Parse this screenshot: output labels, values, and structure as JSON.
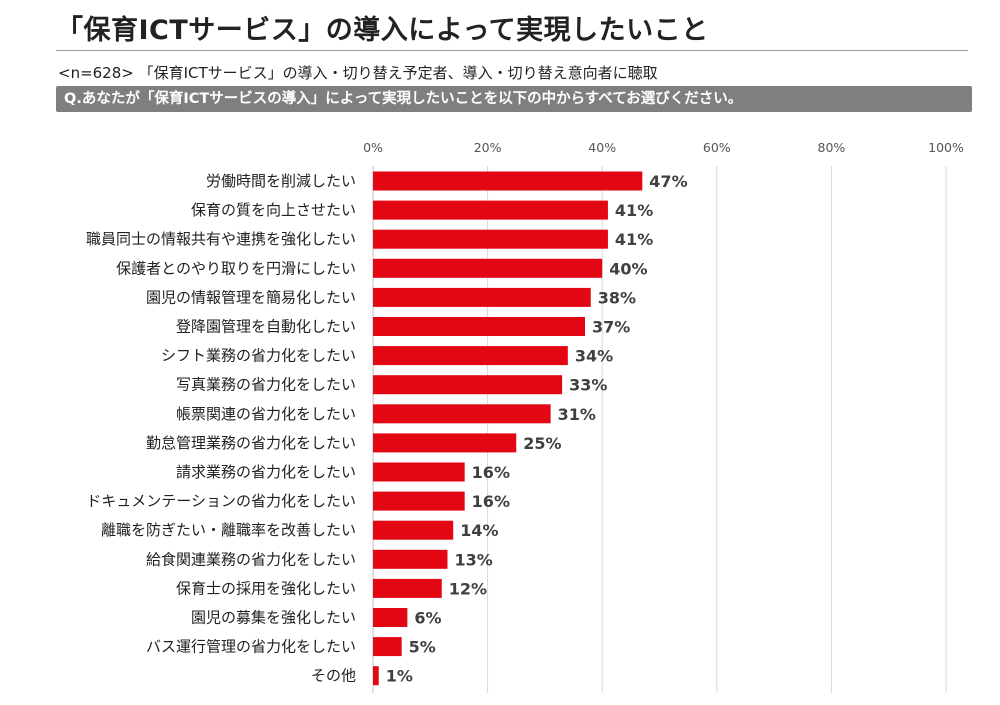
{
  "header": {
    "title": "「保育ICTサービス」の導入によって実現したいこと",
    "note": "<n=628>  「保育ICTサービス」の導入・切り替え予定者、導入・切り替え意向者に聴取",
    "question": "Q.あなたが「保育ICTサービスの導入」によって実現したいことを以下の中からすべてお選びください。"
  },
  "colors": {
    "bar": "#e30613",
    "question_bg": "#7f7f7f"
  },
  "chart_data": {
    "type": "bar",
    "orientation": "horizontal",
    "categories": [
      "労働時間を削減したい",
      "保育の質を向上させたい",
      "職員同士の情報共有や連携を強化したい",
      "保護者とのやり取りを円滑にしたい",
      "園児の情報管理を簡易化したい",
      "登降園管理を自動化したい",
      "シフト業務の省力化をしたい",
      "写真業務の省力化をしたい",
      "帳票関連の省力化をしたい",
      "勤怠管理業務の省力化をしたい",
      "請求業務の省力化をしたい",
      "ドキュメンテーションの省力化をしたい",
      "離職を防ぎたい・離職率を改善したい",
      "給食関連業務の省力化をしたい",
      "保育士の採用を強化したい",
      "園児の募集を強化したい",
      "バス運行管理の省力化をしたい",
      "その他"
    ],
    "values": [
      47,
      41,
      41,
      40,
      38,
      37,
      34,
      33,
      31,
      25,
      16,
      16,
      14,
      13,
      12,
      6,
      5,
      1
    ],
    "value_labels": [
      "47%",
      "41%",
      "41%",
      "40%",
      "38%",
      "37%",
      "34%",
      "33%",
      "31%",
      "25%",
      "16%",
      "16%",
      "14%",
      "13%",
      "12%",
      "6%",
      "5%",
      "1%"
    ],
    "xticks": [
      0,
      20,
      40,
      60,
      80,
      100
    ],
    "xtick_labels": [
      "0%",
      "20%",
      "40%",
      "60%",
      "80%",
      "100%"
    ],
    "xlim": [
      0,
      100
    ],
    "grid": true,
    "legend": "none"
  }
}
